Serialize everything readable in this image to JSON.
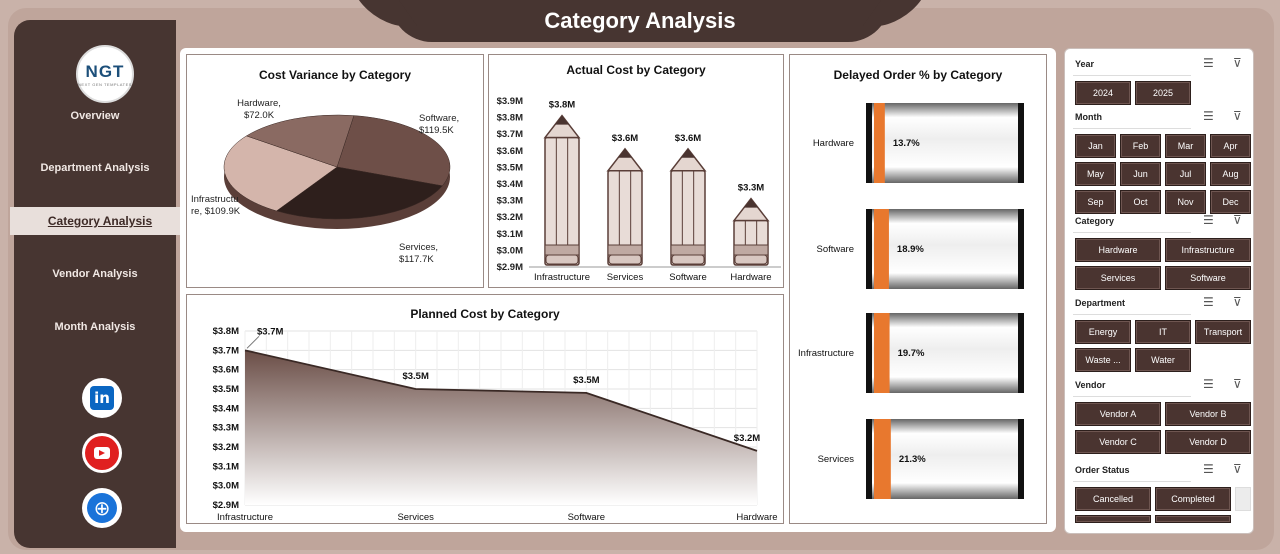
{
  "page_title": "Category Analysis",
  "logo": {
    "text": "NGT",
    "sub": "NEXT GEN TEMPLATES"
  },
  "nav": [
    "Overview",
    "Department Analysis",
    "Category Analysis",
    "Vendor Analysis",
    "Month Analysis"
  ],
  "nav_active": "Category Analysis",
  "social": [
    "linkedin-icon",
    "youtube-icon",
    "globe-icon"
  ],
  "colors": {
    "dark": "#473531",
    "accent_orange": "#e8782e",
    "page_bg": "#c9b2a9"
  },
  "chart_data": [
    {
      "type": "pie",
      "title": "Cost Variance by Category",
      "labels": [
        "Software",
        "Services",
        "Infrastructure",
        "Hardware"
      ],
      "values": [
        119.5,
        117.7,
        109.9,
        72.0
      ],
      "data_labels": [
        "Software,\n$119.5K",
        "Services,\n$117.7K",
        "Infrastructure,\n$109.9K",
        "Hardware,\n$72.0K"
      ],
      "slice_colors": [
        "#6e4f48",
        "#2e1f1c",
        "#d4b5ab",
        "#8a6a62"
      ]
    },
    {
      "type": "bar",
      "title": "Actual Cost by Category",
      "categories": [
        "Infrastructure",
        "Services",
        "Software",
        "Hardware"
      ],
      "values": [
        3.8,
        3.6,
        3.6,
        3.3
      ],
      "data_labels": [
        "$3.8M",
        "$3.6M",
        "$3.6M",
        "$3.3M"
      ],
      "ylim": [
        2.9,
        3.9
      ],
      "yticks": [
        "$2.9M",
        "$3.0M",
        "$3.1M",
        "$3.2M",
        "$3.3M",
        "$3.4M",
        "$3.5M",
        "$3.6M",
        "$3.7M",
        "$3.8M",
        "$3.9M"
      ]
    },
    {
      "type": "area",
      "title": "Planned Cost by Category",
      "categories": [
        "Infrastructure",
        "Services",
        "Software",
        "Hardware"
      ],
      "values": [
        3.7,
        3.5,
        3.48,
        3.18
      ],
      "data_labels": [
        "$3.7M",
        "$3.5M",
        "$3.5M",
        "$3.2M"
      ],
      "ylim": [
        2.9,
        3.8
      ],
      "yticks": [
        "$2.9M",
        "$3.0M",
        "$3.1M",
        "$3.2M",
        "$3.3M",
        "$3.4M",
        "$3.5M",
        "$3.6M",
        "$3.7M",
        "$3.8M"
      ],
      "grid": true
    },
    {
      "type": "bar",
      "orientation": "horizontal",
      "title": "Delayed Order % by Category",
      "categories": [
        "Hardware",
        "Software",
        "Infrastructure",
        "Services"
      ],
      "values": [
        13.7,
        18.9,
        19.7,
        21.3
      ],
      "data_labels": [
        "13.7%",
        "18.9%",
        "19.7%",
        "21.3%"
      ]
    }
  ],
  "slicers": {
    "year": {
      "label": "Year",
      "items": [
        "2024",
        "2025"
      ]
    },
    "month": {
      "label": "Month",
      "items": [
        "Jan",
        "Feb",
        "Mar",
        "Apr",
        "May",
        "Jun",
        "Jul",
        "Aug",
        "Sep",
        "Oct",
        "Nov",
        "Dec"
      ]
    },
    "category": {
      "label": "Category",
      "items": [
        "Hardware",
        "Infrastructure",
        "Services",
        "Software"
      ]
    },
    "department": {
      "label": "Department",
      "items": [
        "Energy",
        "IT",
        "Transport",
        "Waste ...",
        "Water"
      ]
    },
    "vendor": {
      "label": "Vendor",
      "items": [
        "Vendor A",
        "Vendor B",
        "Vendor C",
        "Vendor D"
      ]
    },
    "order_status": {
      "label": "Order Status",
      "items": [
        "Cancelled",
        "Completed"
      ]
    }
  }
}
